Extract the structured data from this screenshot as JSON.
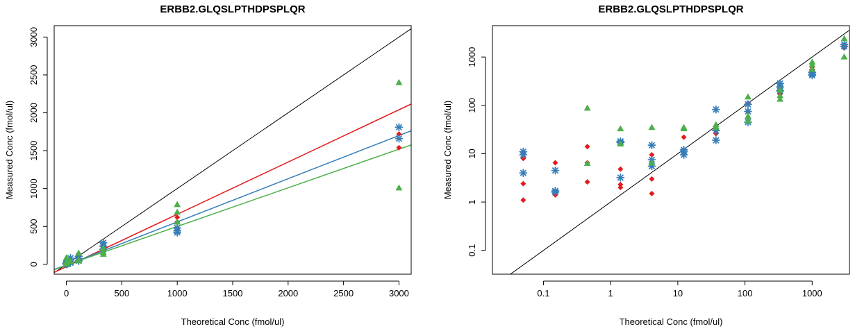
{
  "chart_data": [
    {
      "type": "scatter",
      "title": "ERBB2.GLQSLPTHDPSPLQR",
      "xlabel": "Theoretical Conc (fmol/ul)",
      "ylabel": "Measured Conc (fmol/ul)",
      "scale": "linear",
      "xlim": [
        -110,
        3110
      ],
      "ylim": [
        -130,
        3150
      ],
      "xticks": [
        0,
        500,
        1000,
        1500,
        2000,
        2500,
        3000
      ],
      "yticks": [
        0,
        500,
        1000,
        1500,
        2000,
        2500,
        3000
      ],
      "reference_line": {
        "name": "identity",
        "color": "#000000",
        "slope": 1,
        "intercept": 0
      },
      "series": [
        {
          "color": "#e41a1c",
          "marker": "diamond",
          "points": [
            [
              0.05,
              1.1
            ],
            [
              0.05,
              2.4
            ],
            [
              0.05,
              8
            ],
            [
              0.15,
              1.4
            ],
            [
              0.15,
              6.5
            ],
            [
              0.45,
              2.6
            ],
            [
              0.45,
              6.5
            ],
            [
              0.45,
              14
            ],
            [
              1.4,
              2
            ],
            [
              1.4,
              2.3
            ],
            [
              1.4,
              4.8
            ],
            [
              4.1,
              1.5
            ],
            [
              4.1,
              3
            ],
            [
              4.1,
              9.5
            ],
            [
              12.3,
              12
            ],
            [
              12.3,
              22
            ],
            [
              37,
              26
            ],
            [
              37,
              30
            ],
            [
              111,
              55
            ],
            [
              111,
              75
            ],
            [
              111,
              110
            ],
            [
              333,
              170
            ],
            [
              333,
              200
            ],
            [
              333,
              240
            ],
            [
              1000,
              480
            ],
            [
              1000,
              560
            ],
            [
              1000,
              620
            ],
            [
              3000,
              1540
            ],
            [
              3000,
              1720
            ]
          ],
          "fit": {
            "slope": 0.69,
            "intercept": -30
          }
        },
        {
          "color": "#377eb8",
          "marker": "asterisk",
          "points": [
            [
              0.05,
              4
            ],
            [
              0.05,
              9.5
            ],
            [
              0.05,
              11
            ],
            [
              0.15,
              1.6
            ],
            [
              0.15,
              1.7
            ],
            [
              0.15,
              4.5
            ],
            [
              1.4,
              3.2
            ],
            [
              1.4,
              17
            ],
            [
              1.4,
              18
            ],
            [
              4.1,
              5.5
            ],
            [
              4.1,
              7.5
            ],
            [
              4.1,
              15
            ],
            [
              12.3,
              9.5
            ],
            [
              12.3,
              11
            ],
            [
              12.3,
              12
            ],
            [
              37,
              19
            ],
            [
              37,
              30
            ],
            [
              37,
              82
            ],
            [
              111,
              45
            ],
            [
              111,
              75
            ],
            [
              111,
              105
            ],
            [
              333,
              200
            ],
            [
              333,
              240
            ],
            [
              333,
              285
            ],
            [
              1000,
              420
            ],
            [
              1000,
              440
            ],
            [
              1000,
              480
            ],
            [
              3000,
              1660
            ],
            [
              3000,
              1810
            ]
          ],
          "fit": {
            "slope": 0.57,
            "intercept": -10
          }
        },
        {
          "color": "#4daf4a",
          "marker": "triangle",
          "points": [
            [
              0.45,
              6.3
            ],
            [
              0.45,
              88
            ],
            [
              1.4,
              16
            ],
            [
              1.4,
              33
            ],
            [
              4.1,
              6.5
            ],
            [
              4.1,
              35
            ],
            [
              12.3,
              33
            ],
            [
              12.3,
              35
            ],
            [
              37,
              35
            ],
            [
              37,
              40
            ],
            [
              111,
              48
            ],
            [
              111,
              60
            ],
            [
              111,
              150
            ],
            [
              333,
              135
            ],
            [
              333,
              160
            ],
            [
              333,
              210
            ],
            [
              1000,
              560
            ],
            [
              1000,
              690
            ],
            [
              1000,
              790
            ],
            [
              3000,
              1010
            ],
            [
              3000,
              2400
            ]
          ],
          "fit": {
            "slope": 0.51,
            "intercept": -10
          }
        }
      ]
    },
    {
      "type": "scatter",
      "title": "ERBB2.GLQSLPTHDPSPLQR",
      "xlabel": "Theoretical Conc (fmol/ul)",
      "ylabel": "Measured Conc (fmol/ul)",
      "scale": "log",
      "xlim": [
        0.0174,
        3590
      ],
      "ylim": [
        0.0322,
        4450
      ],
      "xticks": [
        0.1,
        1,
        10,
        100,
        1000
      ],
      "xtick_labels": [
        "0.1",
        "1",
        "10",
        "100",
        "1000"
      ],
      "yticks": [
        0.1,
        1,
        10,
        100,
        1000
      ],
      "ytick_labels": [
        "0.1",
        "1",
        "10",
        "100",
        "1000"
      ],
      "reference_line": {
        "name": "identity",
        "color": "#000000",
        "slope": 1,
        "intercept": 0
      },
      "series": [
        {
          "color": "#e41a1c",
          "marker": "diamond",
          "points": [
            [
              0.05,
              1.1
            ],
            [
              0.05,
              2.4
            ],
            [
              0.05,
              8
            ],
            [
              0.15,
              1.4
            ],
            [
              0.15,
              6.5
            ],
            [
              0.45,
              2.6
            ],
            [
              0.45,
              6.5
            ],
            [
              0.45,
              14
            ],
            [
              1.4,
              2
            ],
            [
              1.4,
              2.3
            ],
            [
              1.4,
              4.8
            ],
            [
              4.1,
              1.5
            ],
            [
              4.1,
              3
            ],
            [
              4.1,
              9.5
            ],
            [
              12.3,
              12
            ],
            [
              12.3,
              22
            ],
            [
              37,
              26
            ],
            [
              37,
              30
            ],
            [
              111,
              55
            ],
            [
              111,
              75
            ],
            [
              111,
              110
            ],
            [
              333,
              170
            ],
            [
              333,
              200
            ],
            [
              333,
              240
            ],
            [
              1000,
              480
            ],
            [
              1000,
              560
            ],
            [
              1000,
              620
            ],
            [
              3000,
              1540
            ],
            [
              3000,
              1720
            ]
          ]
        },
        {
          "color": "#377eb8",
          "marker": "asterisk",
          "points": [
            [
              0.05,
              4
            ],
            [
              0.05,
              9.5
            ],
            [
              0.05,
              11
            ],
            [
              0.15,
              1.6
            ],
            [
              0.15,
              1.7
            ],
            [
              0.15,
              4.5
            ],
            [
              1.4,
              3.2
            ],
            [
              1.4,
              17
            ],
            [
              1.4,
              18
            ],
            [
              4.1,
              5.5
            ],
            [
              4.1,
              7.5
            ],
            [
              4.1,
              15
            ],
            [
              12.3,
              9.5
            ],
            [
              12.3,
              11
            ],
            [
              12.3,
              12
            ],
            [
              37,
              19
            ],
            [
              37,
              30
            ],
            [
              37,
              82
            ],
            [
              111,
              45
            ],
            [
              111,
              75
            ],
            [
              111,
              105
            ],
            [
              333,
              200
            ],
            [
              333,
              240
            ],
            [
              333,
              285
            ],
            [
              1000,
              420
            ],
            [
              1000,
              440
            ],
            [
              1000,
              480
            ],
            [
              3000,
              1660
            ],
            [
              3000,
              1810
            ]
          ]
        },
        {
          "color": "#4daf4a",
          "marker": "triangle",
          "points": [
            [
              0.45,
              6.3
            ],
            [
              0.45,
              88
            ],
            [
              1.4,
              16
            ],
            [
              1.4,
              33
            ],
            [
              4.1,
              6.5
            ],
            [
              4.1,
              35
            ],
            [
              12.3,
              33
            ],
            [
              12.3,
              35
            ],
            [
              37,
              35
            ],
            [
              37,
              40
            ],
            [
              111,
              48
            ],
            [
              111,
              60
            ],
            [
              111,
              150
            ],
            [
              333,
              135
            ],
            [
              333,
              160
            ],
            [
              333,
              210
            ],
            [
              1000,
              560
            ],
            [
              1000,
              690
            ],
            [
              1000,
              790
            ],
            [
              3000,
              1010
            ],
            [
              3000,
              2400
            ]
          ]
        }
      ]
    }
  ]
}
